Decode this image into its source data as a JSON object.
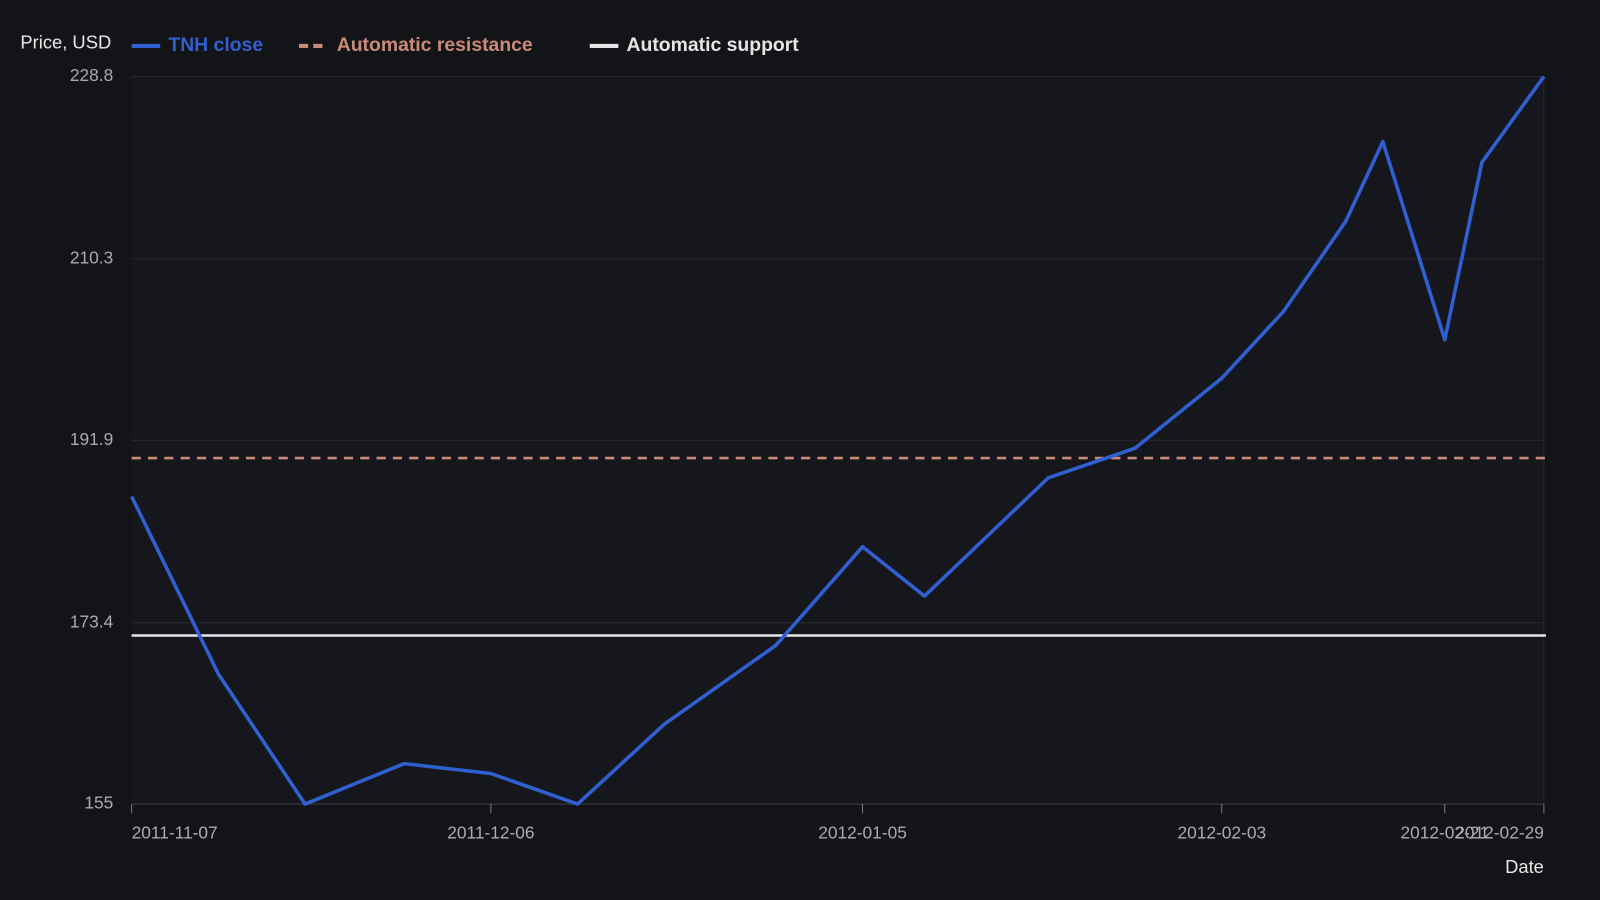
{
  "chart_data": {
    "type": "line",
    "y_axis_label": "Price, USD",
    "x_axis_label": "Date",
    "x": [
      "2011-11-07",
      "2011-11-14",
      "2011-11-21",
      "2011-11-29",
      "2011-12-06",
      "2011-12-13",
      "2011-12-20",
      "2011-12-29",
      "2012-01-05",
      "2012-01-10",
      "2012-01-20",
      "2012-01-27",
      "2012-02-03",
      "2012-02-08",
      "2012-02-13",
      "2012-02-16",
      "2012-02-21",
      "2012-02-24",
      "2012-02-29"
    ],
    "series": [
      {
        "name": "TNH close",
        "color": "#2f5fd0",
        "values": [
          186.2,
          168.2,
          155.0,
          159.1,
          158.1,
          155.0,
          163.1,
          171.1,
          181.1,
          176.1,
          188.1,
          191.1,
          198.2,
          205.0,
          214.1,
          222.2,
          202.1,
          220.1,
          228.8
        ]
      }
    ],
    "levels": [
      {
        "name": "Automatic resistance",
        "color": "#c98a78",
        "dashed": true,
        "value": 190.1
      },
      {
        "name": "Automatic support",
        "color": "#e6e6e6",
        "dashed": false,
        "value": 172.1
      }
    ],
    "xlim": [
      "2011-11-07",
      "2012-02-29"
    ],
    "xticks": [
      "2011-11-07",
      "2011-12-06",
      "2012-01-05",
      "2012-02-03",
      "2012-02-21",
      "2012-02-29"
    ],
    "ylim": [
      155,
      228.8
    ],
    "yticks": [
      155,
      173.4,
      191.9,
      210.3,
      228.8
    ],
    "grid": true
  }
}
